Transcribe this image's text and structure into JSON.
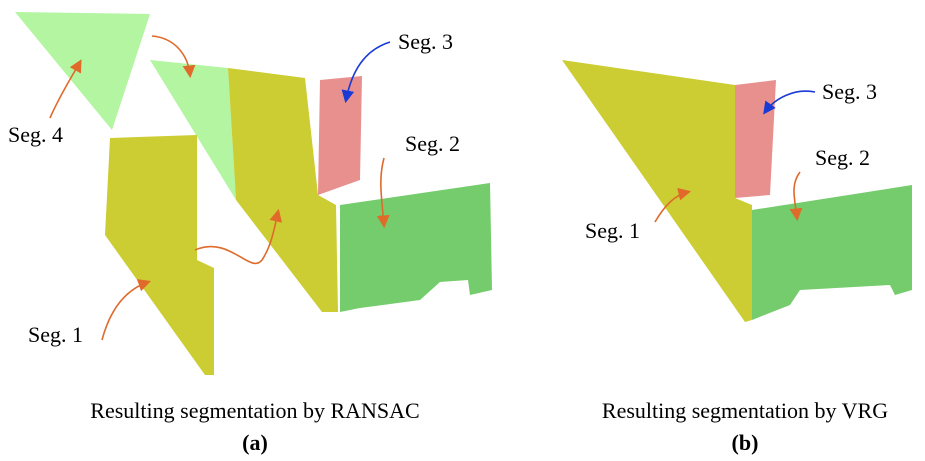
{
  "panels": [
    {
      "labels": [
        "Seg. 4",
        "Seg. 3",
        "Seg. 2",
        "Seg. 1"
      ],
      "caption": "Resulting segmentation by RANSAC",
      "tag": "(a)"
    },
    {
      "labels": [
        "Seg. 3",
        "Seg. 2",
        "Seg. 1"
      ],
      "caption": "Resulting segmentation by VRG",
      "tag": "(b)"
    }
  ]
}
